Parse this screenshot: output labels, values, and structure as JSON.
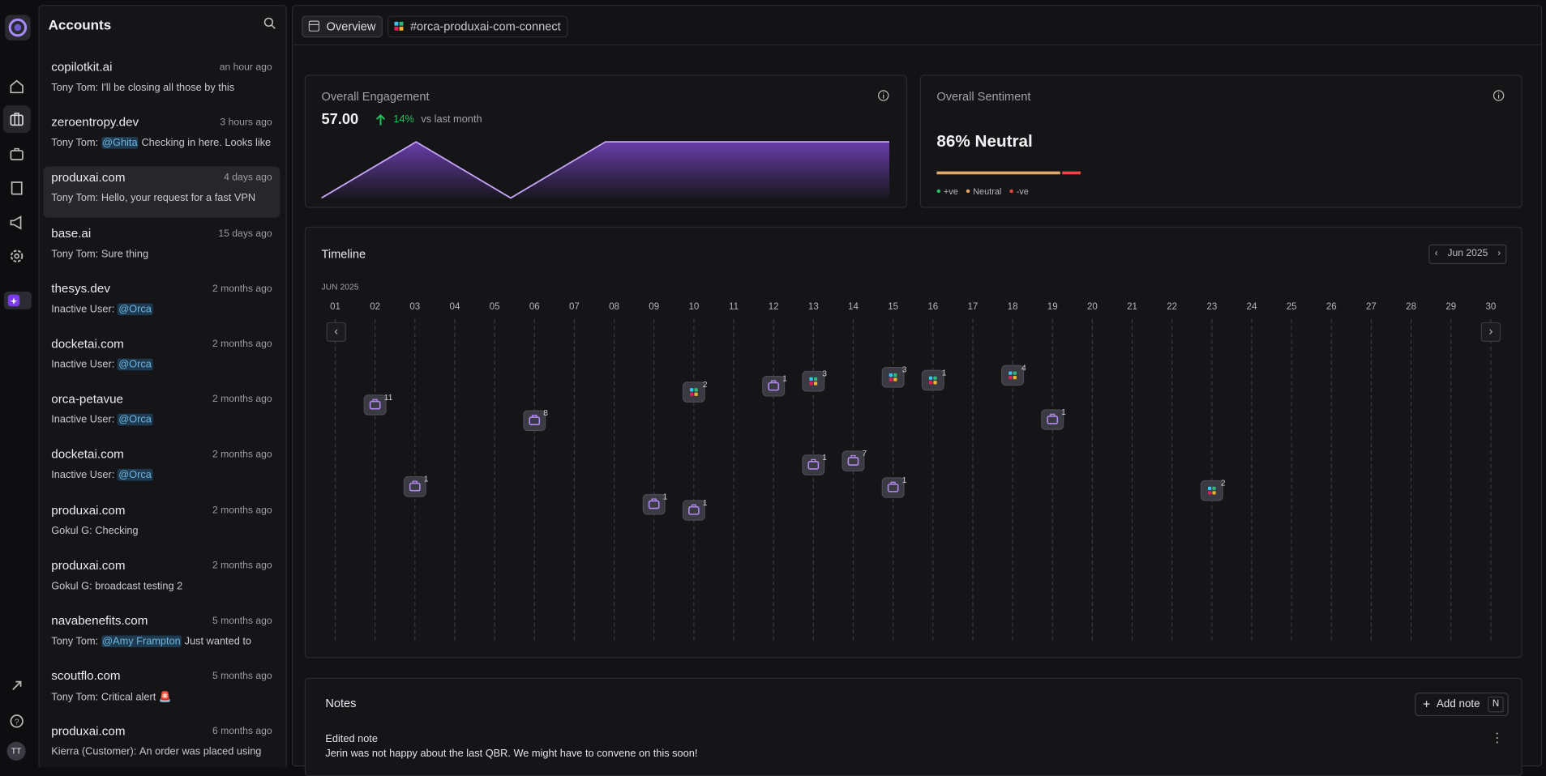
{
  "sidebar": {
    "avatar": "TT"
  },
  "accounts": {
    "title": "Accounts",
    "selected_index": 2,
    "items": [
      {
        "name": "copilotkit.ai",
        "time": "an hour ago",
        "author": "Tony Tom:",
        "text": "I'll be closing all those by this"
      },
      {
        "name": "zeroentropy.dev",
        "time": "3 hours ago",
        "author": "Tony Tom:",
        "mention": "@Ghita",
        "text": "Checking in here. Looks like"
      },
      {
        "name": "produxai.com",
        "time": "4 days ago",
        "author": "Tony Tom:",
        "text": "Hello, your request for a fast VPN"
      },
      {
        "name": "base.ai",
        "time": "15 days ago",
        "author": "Tony Tom:",
        "text": "Sure thing"
      },
      {
        "name": "thesys.dev",
        "time": "2 months ago",
        "author": "Inactive User:",
        "mention": "@Orca"
      },
      {
        "name": "docketai.com",
        "time": "2 months ago",
        "author": "Inactive User:",
        "mention": "@Orca"
      },
      {
        "name": "orca-petavue",
        "time": "2 months ago",
        "author": "Inactive User:",
        "mention": "@Orca"
      },
      {
        "name": "docketai.com",
        "time": "2 months ago",
        "author": "Inactive User:",
        "mention": "@Orca"
      },
      {
        "name": "produxai.com",
        "time": "2 months ago",
        "author": "Gokul G:",
        "text": "Checking"
      },
      {
        "name": "produxai.com",
        "time": "2 months ago",
        "author": "Gokul G:",
        "text": "broadcast testing 2"
      },
      {
        "name": "navabenefits.com",
        "time": "5 months ago",
        "author": "Tony Tom:",
        "mention": "@Amy Frampton",
        "text": "Just wanted to"
      },
      {
        "name": "scoutflo.com",
        "time": "5 months ago",
        "author": "Tony Tom:",
        "text": "Critical alert 🚨"
      },
      {
        "name": "produxai.com",
        "time": "6 months ago",
        "author": "Kierra (Customer):",
        "text": "An order was placed using"
      }
    ]
  },
  "tabs": [
    "Overview",
    "#orca-produxai-com-connect"
  ],
  "engagement": {
    "title": "Overall Engagement",
    "value": "57.00",
    "change": "14%",
    "comparison": "vs last month",
    "sparkline": [
      0,
      1,
      0,
      1,
      1,
      1,
      1
    ]
  },
  "sentiment": {
    "title": "Overall Sentiment",
    "headline": "86% Neutral",
    "segments": [
      {
        "name": "+ve",
        "color": "#22c55e",
        "value": 0
      },
      {
        "name": "Neutral",
        "color": "#e3a96c",
        "value": 86
      },
      {
        "name": "-ve",
        "color": "#ef4444",
        "value": 14
      }
    ]
  },
  "timeline": {
    "title": "Timeline",
    "period": "Jun 2025",
    "month_label": "JUN 2025",
    "days": [
      {
        "label": "01",
        "events": []
      },
      {
        "label": "02",
        "events": [
          {
            "kind": "meeting",
            "count": 11
          }
        ]
      },
      {
        "label": "03",
        "events": [
          {
            "kind": "meeting",
            "count": 1
          }
        ]
      },
      {
        "label": "04",
        "events": []
      },
      {
        "label": "05",
        "events": []
      },
      {
        "label": "06",
        "events": [
          {
            "kind": "meeting",
            "count": 8
          }
        ]
      },
      {
        "label": "07",
        "events": []
      },
      {
        "label": "08",
        "events": []
      },
      {
        "label": "09",
        "events": [
          {
            "kind": "meeting",
            "count": 1
          }
        ]
      },
      {
        "label": "10",
        "events": [
          {
            "kind": "slack",
            "count": 2
          },
          {
            "kind": "meeting",
            "count": 1
          }
        ]
      },
      {
        "label": "11",
        "events": []
      },
      {
        "label": "12",
        "events": [
          {
            "kind": "meeting",
            "count": 1
          }
        ]
      },
      {
        "label": "13",
        "events": [
          {
            "kind": "slack",
            "count": 3
          },
          {
            "kind": "meeting",
            "count": 1
          }
        ]
      },
      {
        "label": "14",
        "events": [
          {
            "kind": "meeting",
            "count": 7
          }
        ]
      },
      {
        "label": "15",
        "events": [
          {
            "kind": "slack",
            "count": 3
          },
          {
            "kind": "meeting",
            "count": 1
          }
        ]
      },
      {
        "label": "16",
        "events": [
          {
            "kind": "slack",
            "count": 1
          }
        ]
      },
      {
        "label": "17",
        "events": []
      },
      {
        "label": "18",
        "events": [
          {
            "kind": "slack",
            "count": 4
          }
        ]
      },
      {
        "label": "19",
        "events": [
          {
            "kind": "meeting",
            "count": 1
          }
        ]
      },
      {
        "label": "20",
        "events": []
      },
      {
        "label": "21",
        "events": []
      },
      {
        "label": "22",
        "events": []
      },
      {
        "label": "23",
        "events": [
          {
            "kind": "slack",
            "count": 2
          }
        ]
      },
      {
        "label": "24",
        "events": []
      },
      {
        "label": "25",
        "events": []
      },
      {
        "label": "26",
        "events": []
      },
      {
        "label": "27",
        "events": []
      },
      {
        "label": "28",
        "events": []
      },
      {
        "label": "29",
        "events": []
      },
      {
        "label": "30",
        "events": []
      }
    ]
  },
  "notes": {
    "title": "Notes",
    "add_label": "Add note",
    "shortcut": "N",
    "items": [
      {
        "title": "Edited note",
        "body": "Jerin was not happy about the last QBR. We might have to convene on this soon!"
      }
    ]
  }
}
